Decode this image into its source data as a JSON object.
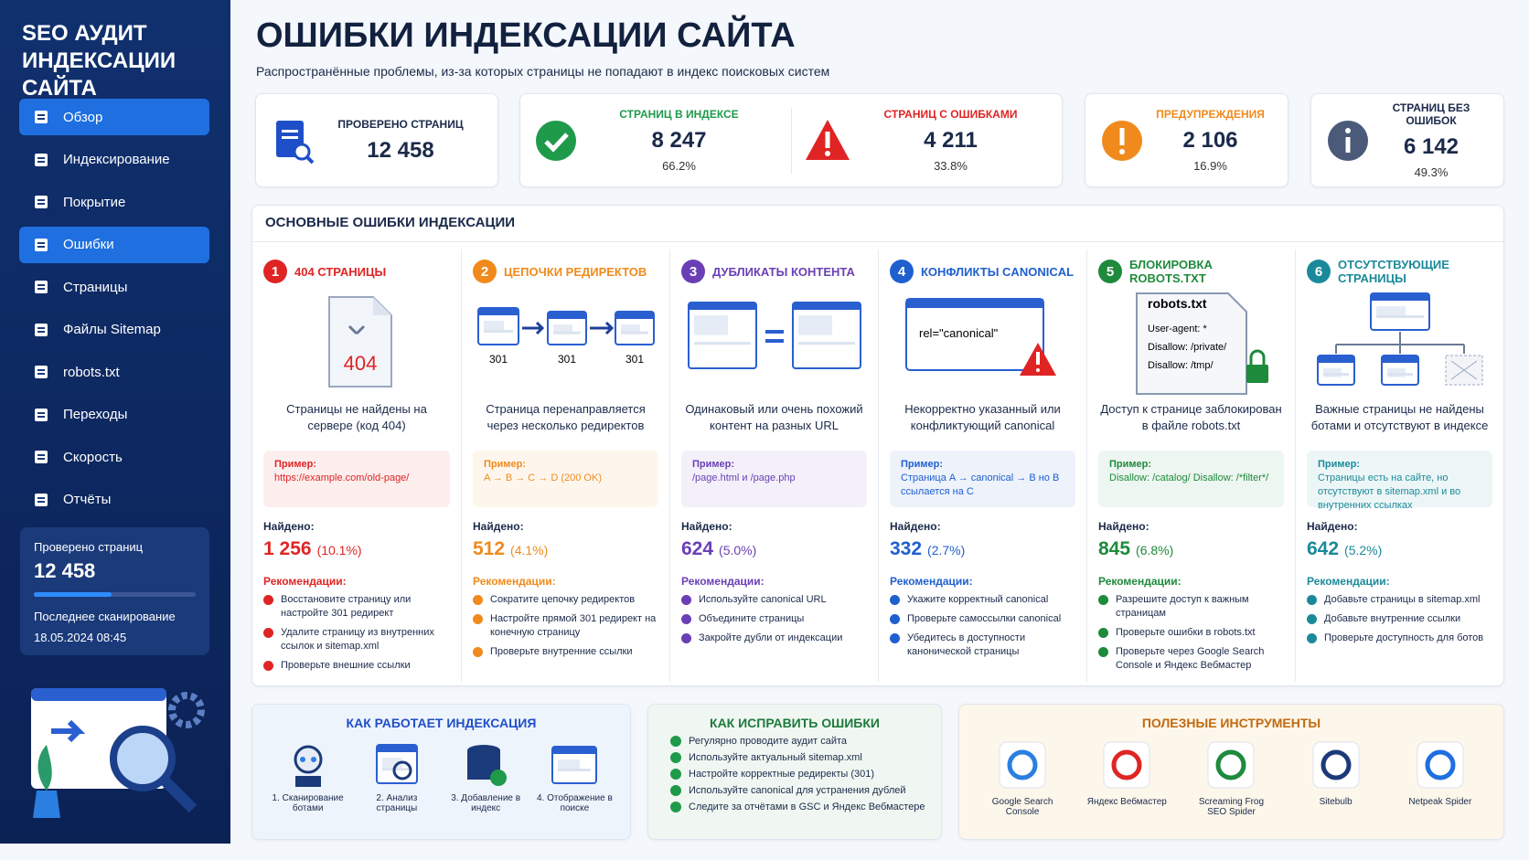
{
  "sidebar": {
    "title": [
      "SEO АУДИТ",
      "ИНДЕКСАЦИИ САЙТА"
    ],
    "menu": [
      {
        "label": "Обзор",
        "active": true
      },
      {
        "label": "Индексирование",
        "active": false
      },
      {
        "label": "Покрытие",
        "active": false
      },
      {
        "label": "Ошибки",
        "active": true
      },
      {
        "label": "Страницы",
        "active": false
      },
      {
        "label": "Файлы Sitemap",
        "active": false
      },
      {
        "label": "robots.txt",
        "active": false
      },
      {
        "label": "Переходы",
        "active": false
      },
      {
        "label": "Скорость",
        "active": false
      },
      {
        "label": "Отчёты",
        "active": false
      }
    ],
    "status": {
      "checked_label": "Проверено страниц",
      "checked_value": "12 458",
      "scan_label": "Последнее сканирование",
      "scan_value": "18.05.2024 08:45"
    }
  },
  "header": {
    "title": "ОШИБКИ ИНДЕКСАЦИИ САЙТА",
    "subtitle": "Распространённые проблемы, из-за которых страницы не попадают в индекс поисковых систем"
  },
  "stats": [
    {
      "label": "ПРОВЕРЕНО СТРАНИЦ",
      "value": "12 458",
      "color": "#1f4fc8"
    },
    {
      "label": "СТРАНИЦ В ИНДЕКСЕ",
      "value": "8 247",
      "percent": "66.2%",
      "color": "#1e9a4a"
    },
    {
      "label": "СТРАНИЦ С ОШИБКАМИ",
      "value": "4 211",
      "percent": "33.8%",
      "color": "#e02424"
    },
    {
      "label": "ПРЕДУПРЕЖДЕНИЯ",
      "value": "2 106",
      "percent": "16.9%",
      "color": "#f08a1c"
    },
    {
      "label": "СТРАНИЦ БЕЗ ОШИБОК",
      "value": "6 142",
      "percent": "49.3%",
      "color": "#4a5a78"
    }
  ],
  "errors": {
    "title": "ОСНОВНЫЕ ОШИБКИ ИНДЕКСАЦИИ",
    "items": [
      {
        "number": "1",
        "title": "404 СТРАНИЦЫ",
        "color": "#e02424",
        "illustration": [
          "404"
        ],
        "description": "Страницы не найдены на сервере (код 404)",
        "example_label": "Пример:",
        "example": "https://example.com/old-page/",
        "found_label": "Найдено:",
        "found": "1 256",
        "found_percent": "(10.1%)",
        "rec_label": "Рекомендации:",
        "recommendations": [
          "Восстановите страницу или настройте 301 редирект",
          "Удалите страницу из внутренних ссылок и sitemap.xml",
          "Проверьте внешние ссылки"
        ]
      },
      {
        "number": "2",
        "title": "ЦЕПОЧКИ РЕДИРЕКТОВ",
        "color": "#f08a1c",
        "illustration": [
          "301",
          "301",
          "301"
        ],
        "description": "Страница перенаправляется через несколько редиректов",
        "example_label": "Пример:",
        "example": "A → B → C → D (200 OK)",
        "found_label": "Найдено:",
        "found": "512",
        "found_percent": "(4.1%)",
        "rec_label": "Рекомендации:",
        "recommendations": [
          "Сократите цепочку редиректов",
          "Настройте прямой 301 редирект на конечную страницу",
          "Проверьте внутренние ссылки"
        ]
      },
      {
        "number": "3",
        "title": "ДУБЛИКАТЫ КОНТЕНТА",
        "color": "#6a3fb5",
        "illustration": [],
        "description": "Одинаковый или очень похожий контент на разных URL",
        "example_label": "Пример:",
        "example": "/page.html и /page.php",
        "found_label": "Найдено:",
        "found": "624",
        "found_percent": "(5.0%)",
        "rec_label": "Рекомендации:",
        "recommendations": [
          "Используйте canonical URL",
          "Объедините страницы",
          "Закройте дубли от индексации"
        ]
      },
      {
        "number": "4",
        "title": "КОНФЛИКТЫ CANONICAL",
        "color": "#1f5fd0",
        "illustration": [
          "rel=\"canonical\""
        ],
        "description": "Некорректно указанный или конфликтующий canonical",
        "example_label": "Пример:",
        "example": "Страница A → canonical → B но B ссылается на C",
        "found_label": "Найдено:",
        "found": "332",
        "found_percent": "(2.7%)",
        "rec_label": "Рекомендации:",
        "recommendations": [
          "Укажите корректный canonical",
          "Проверьте самоссылки canonical",
          "Убедитесь в доступности канонической страницы"
        ]
      },
      {
        "number": "5",
        "title": "БЛОКИРОВКА ROBOTS.TXT",
        "color": "#1e8a3c",
        "illustration": [
          "robots.txt",
          "User-agent: *",
          "Disallow: /private/",
          "Disallow: /tmp/"
        ],
        "description": "Доступ к странице заблокирован в файле robots.txt",
        "example_label": "Пример:",
        "example": "Disallow: /catalog/ Disallow: /*filter*/",
        "found_label": "Найдено:",
        "found": "845",
        "found_percent": "(6.8%)",
        "rec_label": "Рекомендации:",
        "recommendations": [
          "Разрешите доступ к важным страницам",
          "Проверьте ошибки в robots.txt",
          "Проверьте через Google Search Console и Яндекс Вебмастер"
        ]
      },
      {
        "number": "6",
        "title": "ОТСУТСТВУЮЩИЕ СТРАНИЦЫ",
        "color": "#1a8a9a",
        "illustration": [],
        "description": "Важные страницы не найдены ботами и отсутствуют в индексе",
        "example_label": "Пример:",
        "example": "Страницы есть на сайте, но отсутствуют в sitemap.xml и во внутренних ссылках",
        "found_label": "Найдено:",
        "found": "642",
        "found_percent": "(5.2%)",
        "rec_label": "Рекомендации:",
        "recommendations": [
          "Добавьте страницы в sitemap.xml",
          "Добавьте внутренние ссылки",
          "Проверьте доступность для ботов"
        ]
      }
    ]
  },
  "how_it_works": {
    "title": "КАК РАБОТАЕТ ИНДЕКСАЦИЯ",
    "steps": [
      "1. Сканирование ботами",
      "2. Анализ страницы",
      "3. Добавление в индекс",
      "4. Отображение в поиске"
    ]
  },
  "how_to_fix": {
    "title": "КАК ИСПРАВИТЬ ОШИБКИ",
    "items": [
      "Регулярно проводите аудит сайта",
      "Используйте актуальный sitemap.xml",
      "Настройте корректные редиректы (301)",
      "Используйте canonical для устранения дублей",
      "Следите за отчётами в GSC и Яндекс Вебмастере"
    ]
  },
  "tools": {
    "title": "ПОЛЕЗНЫЕ ИНСТРУМЕНТЫ",
    "items": [
      "Google Search Console",
      "Яндекс Вебмастер",
      "Screaming Frog SEO Spider",
      "Sitebulb",
      "Netpeak Spider"
    ]
  }
}
